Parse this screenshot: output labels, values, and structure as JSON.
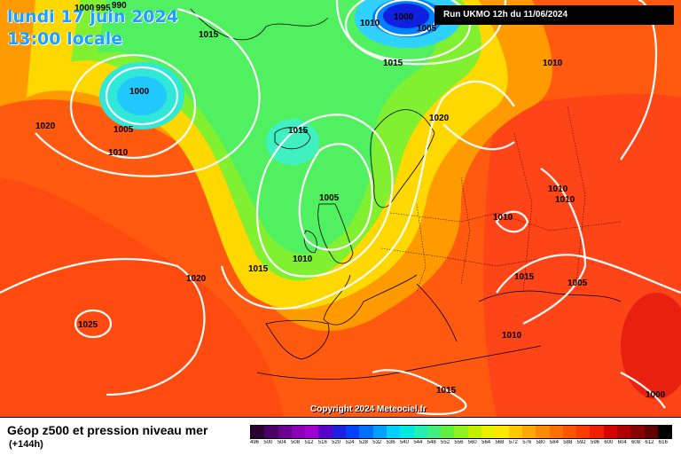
{
  "title": {
    "date": "lundi 17 juin 2024",
    "local_time": "13:00 locale"
  },
  "run_info": "Run UKMO 12h du 11/06/2024",
  "copyright": "Copyright 2024 Meteociel.fr",
  "parameter": {
    "title": "Géop z500 et pression niveau mer",
    "lead_time": "(+144h)"
  },
  "colors": {
    "isobar": "#ffffff",
    "coastline": "#000000",
    "title_text": "#1aa0ff"
  },
  "isobar_labels": [
    "1000",
    "995",
    "990",
    "1015",
    "1010",
    "1000",
    "1005",
    "1015",
    "1010",
    "1020",
    "1000",
    "1005",
    "1010",
    "1015",
    "1020",
    "1010",
    "1010",
    "1010",
    "1005",
    "1010",
    "1015",
    "1020",
    "1015",
    "1005",
    "1025",
    "1010",
    "1015",
    "1000"
  ],
  "legend": {
    "labels": [
      "496",
      "500",
      "504",
      "508",
      "512",
      "516",
      "520",
      "524",
      "528",
      "532",
      "536",
      "540",
      "544",
      "548",
      "552",
      "556",
      "560",
      "564",
      "568",
      "572",
      "576",
      "580",
      "584",
      "588",
      "592",
      "596",
      "600",
      "604",
      "608",
      "612",
      "616"
    ],
    "colors": [
      "#2a0030",
      "#4b0066",
      "#6a0090",
      "#8a00b8",
      "#a000d0",
      "#5a00c8",
      "#2020e0",
      "#0040ff",
      "#0070ff",
      "#00a0ff",
      "#00d0ff",
      "#00e8e0",
      "#20f0b0",
      "#40f080",
      "#60f040",
      "#90f020",
      "#c0f000",
      "#e8f000",
      "#ffe800",
      "#ffc800",
      "#ffa800",
      "#ff8c00",
      "#ff7000",
      "#ff5400",
      "#ff3c00",
      "#f02000",
      "#d80000",
      "#b00000",
      "#880000",
      "#600000",
      "#000000"
    ]
  }
}
